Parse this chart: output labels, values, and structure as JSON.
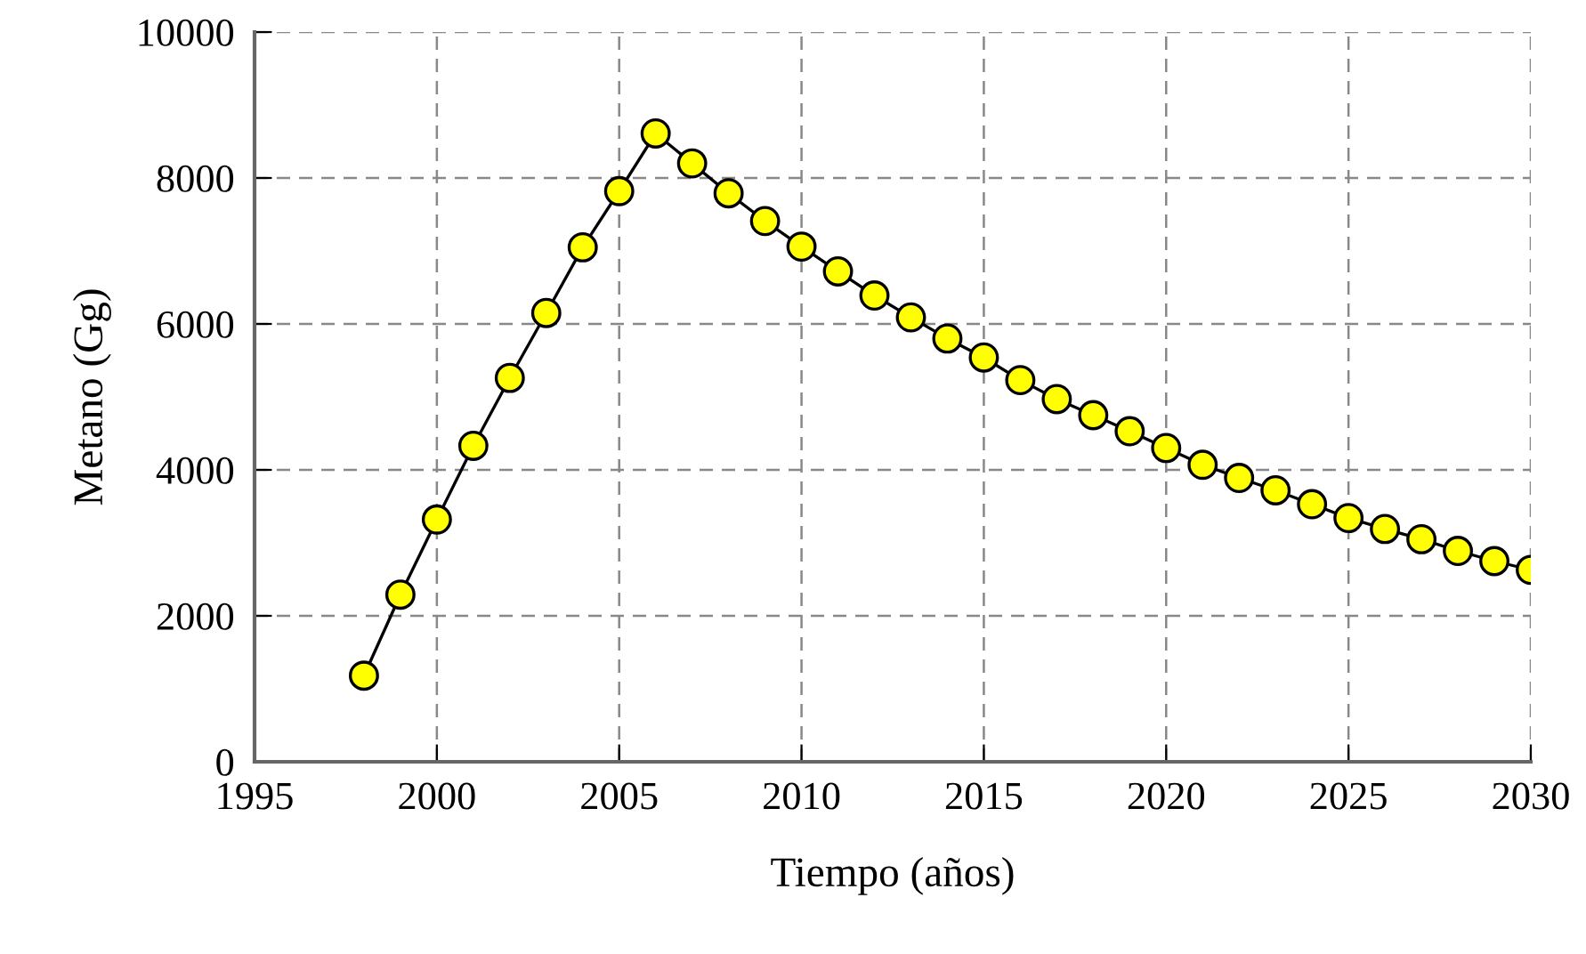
{
  "chart_data": {
    "type": "line",
    "xlabel": "Tiempo (años)",
    "ylabel": "Metano (Gg)",
    "x": [
      1998,
      1999,
      2000,
      2001,
      2002,
      2003,
      2004,
      2005,
      2006,
      2007,
      2008,
      2009,
      2010,
      2011,
      2012,
      2013,
      2014,
      2015,
      2016,
      2017,
      2018,
      2019,
      2020,
      2021,
      2022,
      2023,
      2024,
      2025,
      2026,
      2027,
      2028,
      2029,
      2030
    ],
    "series": [
      {
        "color": "#ffff00",
        "values": [
          1180,
          2290,
          3320,
          4330,
          5260,
          6150,
          7050,
          7820,
          8610,
          8200,
          7790,
          7410,
          7060,
          6720,
          6390,
          6090,
          5800,
          5540,
          5230,
          4970,
          4750,
          4530,
          4300,
          4070,
          3890,
          3720,
          3530,
          3340,
          3190,
          3050,
          2890,
          2750,
          2630
        ]
      }
    ],
    "xlim": [
      1995,
      2030
    ],
    "xticks": [
      1995,
      2000,
      2005,
      2010,
      2015,
      2020,
      2025,
      2030
    ],
    "ylim": [
      0,
      10000
    ],
    "yticks": [
      0,
      2000,
      4000,
      6000,
      8000,
      10000
    ],
    "grid": true,
    "marker": "circle",
    "line_style": "solid",
    "legend": false
  }
}
